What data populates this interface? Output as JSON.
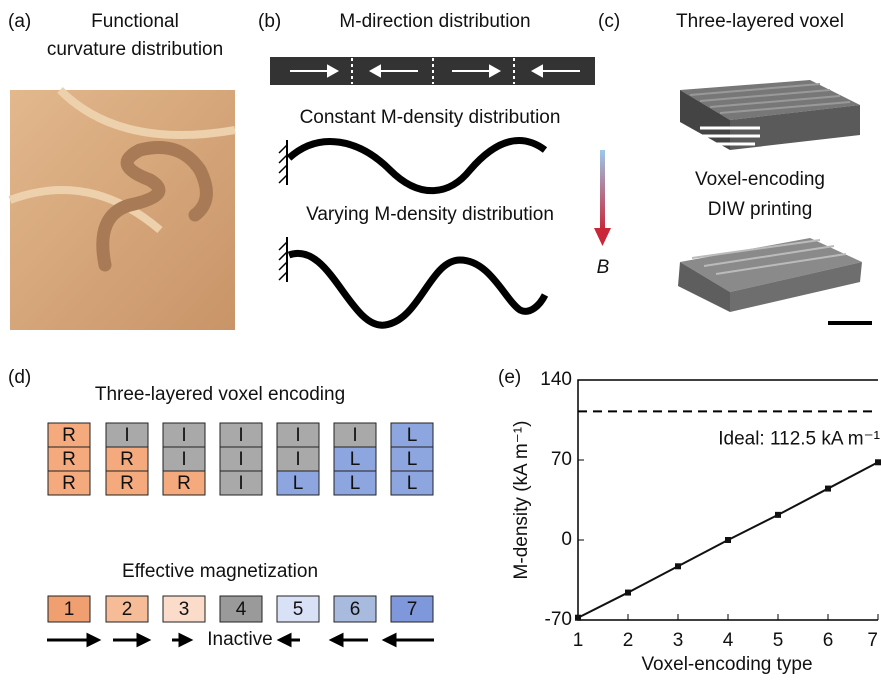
{
  "panels": {
    "a": {
      "label": "(a)",
      "title": [
        "Functional",
        "curvature distribution"
      ]
    },
    "b": {
      "label": "(b)",
      "title": "M-direction distribution",
      "constant": "Constant M-density distribution",
      "varying": "Varying M-density distribution",
      "field": "B"
    },
    "c": {
      "label": "(c)",
      "title": "Three-layered voxel",
      "subtitle": [
        "Voxel-encoding",
        "DIW printing"
      ]
    },
    "d": {
      "label": "(d)",
      "title": "Three-layered voxel encoding",
      "voxels": [
        [
          "R",
          "R",
          "R"
        ],
        [
          "I",
          "R",
          "R"
        ],
        [
          "I",
          "I",
          "R"
        ],
        [
          "I",
          "I",
          "I"
        ],
        [
          "I",
          "I",
          "L"
        ],
        [
          "I",
          "L",
          "L"
        ],
        [
          "L",
          "L",
          "L"
        ]
      ],
      "magnetization_title": "Effective magnetization",
      "types": [
        "1",
        "2",
        "3",
        "4",
        "5",
        "6",
        "7"
      ],
      "inactive": "Inactive"
    }
  },
  "chart_data": {
    "type": "line",
    "panel_label": "(e)",
    "x": [
      1,
      2,
      3,
      4,
      5,
      6,
      7
    ],
    "values": [
      -68,
      -46,
      -23,
      0,
      22,
      45,
      68
    ],
    "color": "#111",
    "xlim": [
      1,
      7
    ],
    "xticks": [
      1,
      2,
      3,
      4,
      5,
      6,
      7
    ],
    "ylim": [
      -70,
      140
    ],
    "yticks": [
      -70,
      0,
      70,
      140
    ],
    "xlabel": "Voxel-encoding type",
    "ylabel": "M-density (kA m⁻¹)",
    "reference_line": 112.5,
    "annotation": "Ideal: 112.5 kA m⁻¹"
  }
}
